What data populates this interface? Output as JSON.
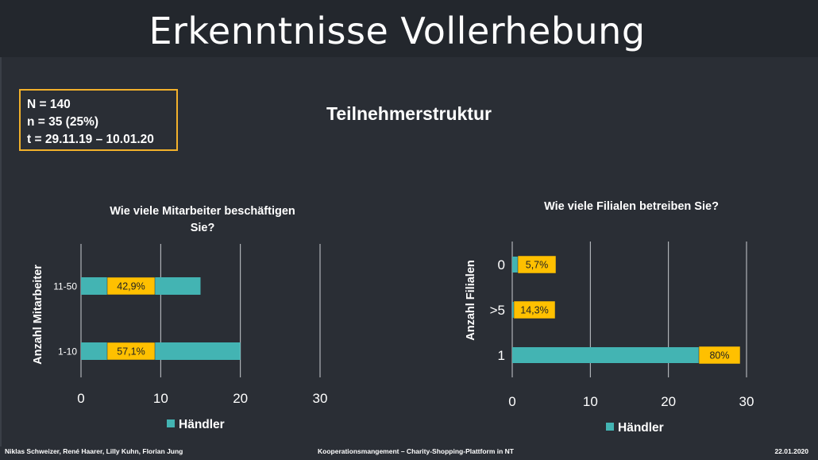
{
  "title": "Erkenntnisse Vollerhebung",
  "info_box": {
    "lines": [
      "N = 140",
      "n = 35 (25%)",
      "t  = 29.11.19 – 10.01.20"
    ]
  },
  "subtitle": "Teilnehmerstruktur",
  "colors": {
    "bar": "#43b4b3",
    "label_bg": "#ffc000",
    "box_border": "#f2b12b",
    "background": "#2a2e35",
    "title_band": "#23272d"
  },
  "chart_data": [
    {
      "type": "bar",
      "orientation": "horizontal",
      "title": "Wie viele Mitarbeiter beschäftigen Sie?",
      "title_lines": [
        "Wie viele Mitarbeiter beschäftigen",
        "Sie?"
      ],
      "ylabel": "Anzahl Mitarbeiter",
      "categories": [
        "11-50",
        "1-10"
      ],
      "series": [
        {
          "name": "Händler",
          "values": [
            15,
            20
          ]
        }
      ],
      "data_labels": [
        "42,9%",
        "57,1%"
      ],
      "xlim": [
        0,
        30
      ],
      "xticks": [
        "0",
        "10",
        "20",
        "30"
      ],
      "grid": true,
      "legend": "bottom"
    },
    {
      "type": "bar",
      "orientation": "horizontal",
      "title": "Wie viele Filialen betreiben Sie?",
      "ylabel": "Anzahl Filialen",
      "categories": [
        "0",
        ">5",
        "1"
      ],
      "series": [
        {
          "name": "Händler",
          "values": [
            2,
            5,
            28
          ]
        }
      ],
      "data_labels": [
        "5,7%",
        "14,3%",
        "80%"
      ],
      "xlim": [
        0,
        30
      ],
      "xticks": [
        "0",
        "10",
        "20",
        "30"
      ],
      "grid": true,
      "legend": "bottom"
    }
  ],
  "footer": {
    "authors": "Niklas Schweizer, René Haarer, Lilly Kuhn, Florian Jung",
    "center": "Kooperationsmangement – Charity-Shopping-Plattform in NT",
    "date": "22.01.2020"
  }
}
